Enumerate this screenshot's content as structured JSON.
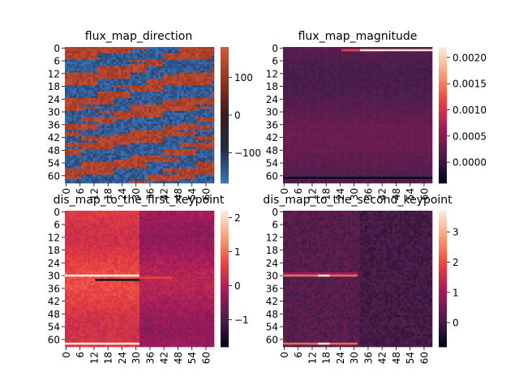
{
  "figure": {
    "background": "#ffffff"
  },
  "chart_data": [
    {
      "type": "heatmap",
      "title": "flux_map_direction",
      "xlabel": "",
      "ylabel": "",
      "n_rows": 64,
      "n_cols": 64,
      "ytick_labels": [
        "0",
        "6",
        "12",
        "18",
        "24",
        "30",
        "36",
        "42",
        "48",
        "54",
        "60"
      ],
      "xtick_labels": [
        "0",
        "6",
        "12",
        "18",
        "24",
        "30",
        "36",
        "42",
        "48",
        "54",
        "60"
      ],
      "colorbar": {
        "ticks": [
          100,
          0,
          -100
        ],
        "tick_labels": [
          "100",
          "0",
          "−100"
        ],
        "range": [
          -180,
          180
        ]
      },
      "colormap": "icefire",
      "colormap_stops": [
        "#3b72b8",
        "#222a44",
        "#3a1c1c",
        "#8e3322",
        "#d4573a"
      ],
      "pattern": "alternating blue and dark-red horizontal bands with mottled blocks; values span about -180 to 180"
    },
    {
      "type": "heatmap",
      "title": "flux_map_magnitude",
      "xlabel": "",
      "ylabel": "",
      "n_rows": 64,
      "n_cols": 64,
      "ytick_labels": [
        "0",
        "6",
        "12",
        "18",
        "24",
        "30",
        "36",
        "42",
        "48",
        "54",
        "60"
      ],
      "xtick_labels": [
        "0",
        "6",
        "12",
        "18",
        "24",
        "30",
        "36",
        "42",
        "48",
        "54",
        "60"
      ],
      "colorbar": {
        "ticks": [
          0.002,
          0.0015,
          0.001,
          0.0005,
          0.0
        ],
        "tick_labels": [
          "0.0020",
          "0.0015",
          "0.0010",
          "0.0005",
          "0.0000"
        ],
        "range": [
          -0.0004,
          0.0022
        ]
      },
      "colormap": "rocket",
      "colormap_stops": [
        "#03051a",
        "#4c1d4b",
        "#a11a5b",
        "#e83f3f",
        "#f69c73",
        "#faebdd"
      ],
      "pattern": "mostly dark purple near 0.0002; bright line along row 1 on right half up to about 0.0022; dark line near row 61"
    },
    {
      "type": "heatmap",
      "title": "dis_map_to_the_first_keypoint",
      "xlabel": "",
      "ylabel": "",
      "n_rows": 64,
      "n_cols": 64,
      "ytick_labels": [
        "0",
        "6",
        "12",
        "18",
        "24",
        "30",
        "36",
        "42",
        "48",
        "54",
        "60"
      ],
      "xtick_labels": [
        "0",
        "6",
        "12",
        "18",
        "24",
        "30",
        "36",
        "42",
        "48",
        "54",
        "60"
      ],
      "colorbar": {
        "ticks": [
          2,
          1,
          0,
          -1
        ],
        "tick_labels": [
          "2",
          "1",
          "0",
          "−1"
        ],
        "range": [
          -1.8,
          2.2
        ]
      },
      "colormap": "rocket",
      "colormap_stops": [
        "#03051a",
        "#4c1d4b",
        "#a11a5b",
        "#e83f3f",
        "#f69c73",
        "#faebdd"
      ],
      "pattern": "red-magenta field around 0.5 on left half, fading to about -0.2 on right; bright lines at rows 30 and 62 on left half; dark line near row 32"
    },
    {
      "type": "heatmap",
      "title": "dis_map_to_the_second_keypoint",
      "xlabel": "",
      "ylabel": "",
      "n_rows": 64,
      "n_cols": 64,
      "ytick_labels": [
        "0",
        "6",
        "12",
        "18",
        "24",
        "30",
        "36",
        "42",
        "48",
        "54",
        "60"
      ],
      "xtick_labels": [
        "0",
        "6",
        "12",
        "18",
        "24",
        "30",
        "36",
        "42",
        "48",
        "54",
        "60"
      ],
      "colorbar": {
        "ticks": [
          3,
          2,
          1,
          0
        ],
        "tick_labels": [
          "3",
          "2",
          "1",
          "0"
        ],
        "range": [
          -0.8,
          3.7
        ]
      },
      "colormap": "rocket",
      "colormap_stops": [
        "#03051a",
        "#4c1d4b",
        "#a11a5b",
        "#e83f3f",
        "#f69c73",
        "#faebdd"
      ],
      "pattern": "dark purple field around 0.2; bright lines at rows 30 and 62 on left half up to about 3.6"
    }
  ]
}
